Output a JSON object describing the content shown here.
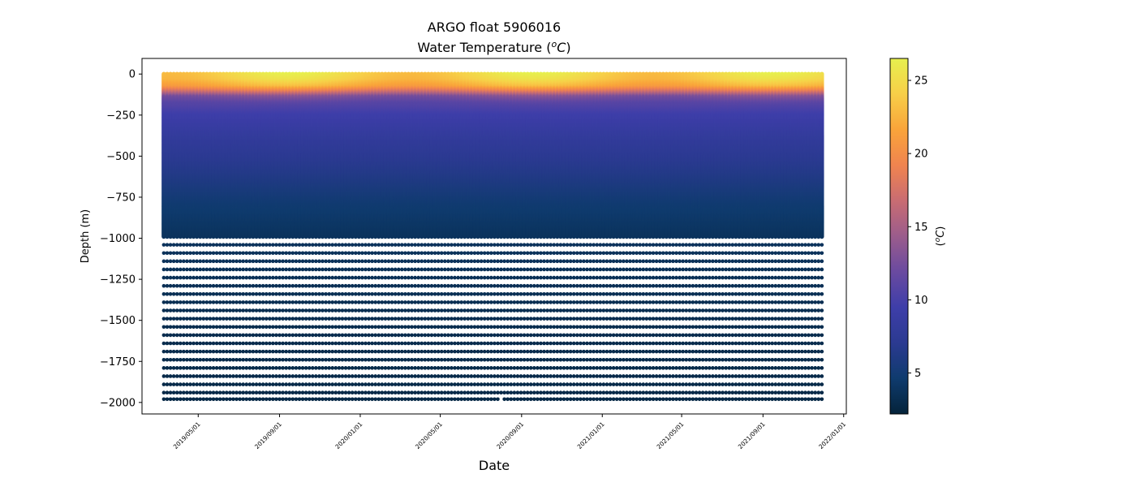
{
  "chart_data": {
    "type": "scatter",
    "title": "ARGO float 5906016",
    "subtitle_prefix": "Water Temperature (",
    "subtitle_sup": "o",
    "subtitle_unit": "C",
    "subtitle_suffix": ")",
    "xlabel": "Date",
    "ylabel": "Depth (m)",
    "x_start": "2019-03-10",
    "x_end": "2021-12-01",
    "xlim": [
      "2019-02-05",
      "2022-01-05"
    ],
    "profile_interval_days": 5,
    "ylim": [
      -2070,
      95
    ],
    "y_ticks": [
      0,
      -250,
      -500,
      -750,
      -1000,
      -1250,
      -1500,
      -1750,
      -2000
    ],
    "y_tick_labels": [
      "0",
      "−250",
      "−500",
      "−750",
      "−1000",
      "−1250",
      "−1500",
      "−1750",
      "−2000"
    ],
    "x_ticks": [
      "2019-05-01",
      "2019-09-01",
      "2020-01-01",
      "2020-05-01",
      "2020-09-01",
      "2021-01-01",
      "2021-05-01",
      "2021-09-01",
      "2022-01-01"
    ],
    "x_tick_labels": [
      "2019/05/01",
      "2019/09/01",
      "2020/01/01",
      "2020/05/01",
      "2020/09/01",
      "2021/01/01",
      "2021/05/01",
      "2021/09/01",
      "2022/01/01"
    ],
    "upper_depth_resolution_m": 5,
    "upper_profile_bottom_m": -990,
    "deep_levels_m": [
      -1040,
      -1090,
      -1140,
      -1190,
      -1240,
      -1290,
      -1340,
      -1390,
      -1440,
      -1490,
      -1540,
      -1590,
      -1640,
      -1690,
      -1740,
      -1790,
      -1840,
      -1890,
      -1940
    ],
    "deepest_level_m": -1980,
    "deepest_level_gaps": [
      "2019-06-15",
      "2019-06-20",
      "2020-02-01",
      "2020-06-05",
      "2020-08-01",
      "2021-02-10",
      "2021-02-15"
    ],
    "temperature_profile": {
      "depths_m": [
        0,
        -40,
        -80,
        -110,
        -140,
        -180,
        -250,
        -400,
        -600,
        -800,
        -1000,
        -1500,
        -2000
      ],
      "temps_c": [
        24.8,
        24.0,
        22.0,
        18.0,
        13.0,
        11.0,
        9.5,
        8.0,
        6.5,
        4.8,
        3.8,
        3.2,
        2.8
      ],
      "seasonal_amplitude_c": 1.8,
      "warmest_day_of_year": 260
    },
    "colorbar": {
      "label_prefix": "(",
      "label_sup": "o",
      "label_unit": "C",
      "label_suffix": ")",
      "range": [
        2.2,
        26.5
      ],
      "ticks": [
        5,
        10,
        15,
        20,
        25
      ],
      "tick_labels": [
        "5",
        "10",
        "15",
        "20",
        "25"
      ],
      "colormap": "thermal",
      "stops": [
        "#04233a",
        "#0f3b6e",
        "#2b3a91",
        "#3e3ea9",
        "#6a4aa0",
        "#9b5c8c",
        "#c96c72",
        "#f0844f",
        "#f9a43a",
        "#f7cf48",
        "#e7f04e"
      ]
    },
    "grid": false,
    "legend": "none"
  }
}
